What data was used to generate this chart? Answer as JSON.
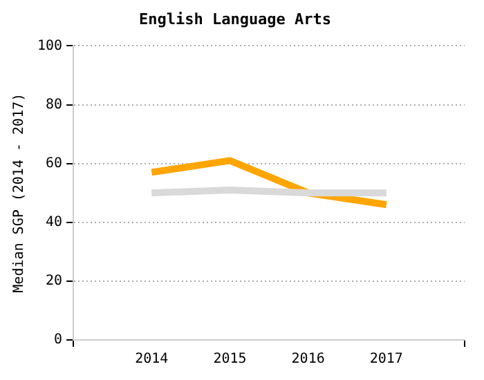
{
  "chart_data": {
    "type": "line",
    "title": "English Language Arts",
    "ylabel": "Median SGP (2014 - 2017)",
    "x": [
      2014,
      2015,
      2016,
      2017
    ],
    "series": [
      {
        "color": "#d9d9d9",
        "values": [
          50,
          51,
          50,
          50
        ]
      },
      {
        "color": "#ffa500",
        "values": [
          57,
          61,
          50,
          46
        ]
      }
    ],
    "xlim": [
      2013,
      2018
    ],
    "xticks": [
      {
        "value": 2013,
        "label": null
      },
      2014,
      2015,
      2016,
      2017,
      {
        "value": 2018,
        "label": null
      }
    ],
    "ylim": [
      0,
      100
    ],
    "yticks": [
      0,
      20,
      40,
      60,
      80,
      100
    ],
    "grid": "y",
    "legend": false,
    "marker": "none"
  }
}
